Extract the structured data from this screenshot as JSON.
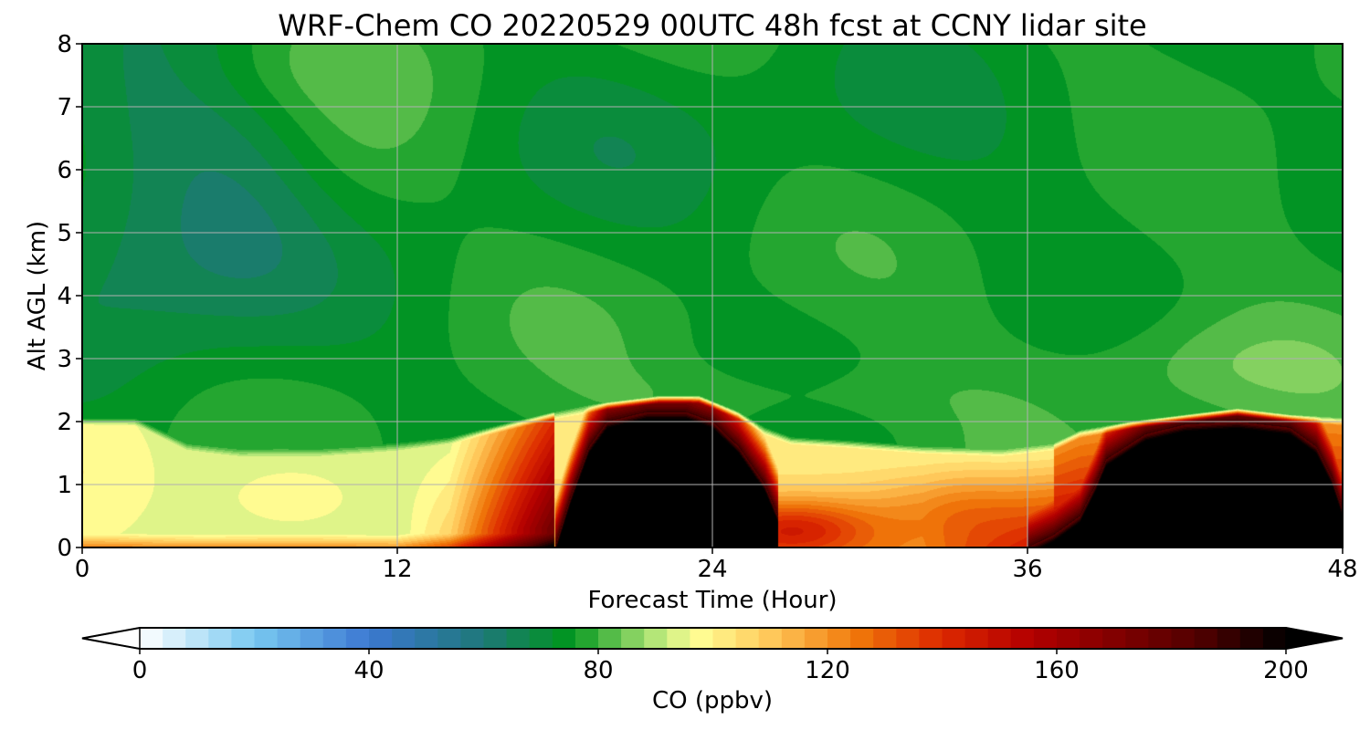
{
  "chart_data": {
    "type": "heatmap",
    "title": "WRF-Chem CO  20220529 00UTC 48h fcst at CCNY lidar site",
    "xlabel": "Forecast Time (Hour)",
    "ylabel": "Alt AGL (km)",
    "xlim": [
      0,
      48
    ],
    "ylim": [
      0,
      8
    ],
    "xticks": [
      0,
      12,
      24,
      36,
      48
    ],
    "yticks": [
      0,
      1,
      2,
      3,
      4,
      5,
      6,
      7,
      8
    ],
    "grid": true,
    "colorbar": {
      "label": "CO  (ppbv)",
      "orientation": "horizontal",
      "placement": "bottom",
      "range": [
        0,
        200
      ],
      "ticks": [
        0,
        40,
        80,
        120,
        160,
        200
      ],
      "extend": "both",
      "colors": [
        {
          "v": 0,
          "c": "#ffffff"
        },
        {
          "v": 20,
          "c": "#78c8f0"
        },
        {
          "v": 40,
          "c": "#3c78d2"
        },
        {
          "v": 60,
          "c": "#1e7878"
        },
        {
          "v": 75,
          "c": "#00961e"
        },
        {
          "v": 90,
          "c": "#b4e678"
        },
        {
          "v": 97,
          "c": "#ffff96"
        },
        {
          "v": 110,
          "c": "#ffc85a"
        },
        {
          "v": 125,
          "c": "#f0780a"
        },
        {
          "v": 140,
          "c": "#dc2800"
        },
        {
          "v": 155,
          "c": "#b40000"
        },
        {
          "v": 185,
          "c": "#500000"
        },
        {
          "v": 200,
          "c": "#000000"
        }
      ]
    },
    "field_key_features": [
      {
        "region": "surface layer 0-2 km, hours 0-3",
        "co_ppbv": 97
      },
      {
        "region": "lowest 0.2 km, hours 0-12",
        "co_ppbv": 115
      },
      {
        "region": "below 2.3 km, hours 19-25",
        "co_ppbv": 200
      },
      {
        "region": "below 1.6 km, hours 25-37",
        "co_ppbv": 130
      },
      {
        "region": "below 2 km, hours 38-48",
        "co_ppbv": 200
      },
      {
        "region": "free troposphere 4-6 km, hours 0-18",
        "co_ppbv": 65
      },
      {
        "region": "free troposphere, hours 18-48",
        "co_ppbv": 76
      }
    ]
  }
}
